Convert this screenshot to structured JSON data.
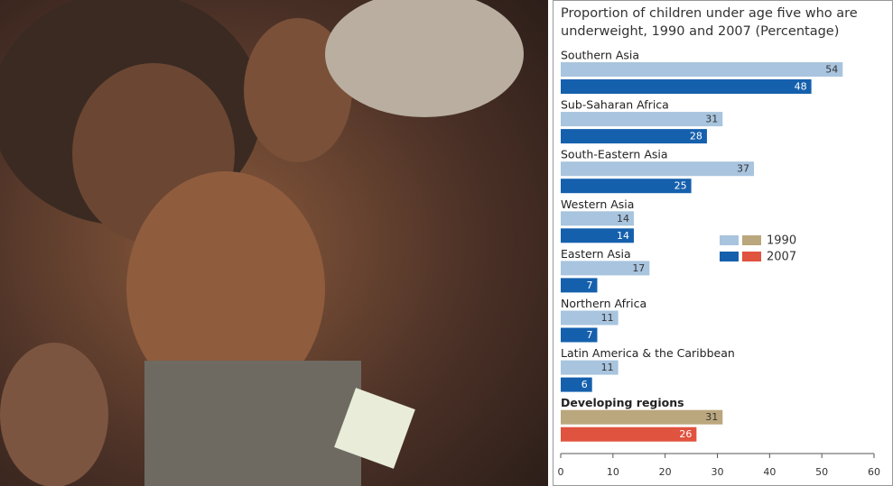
{
  "chart_data": {
    "type": "bar",
    "orientation": "horizontal",
    "title": "Proportion of children under age five who are underweight, 1990 and 2007 (Percentage)",
    "categories": [
      "Southern Asia",
      "Sub-Saharan Africa",
      "South-Eastern Asia",
      "Western Asia",
      "Eastern Asia",
      "Northern Africa",
      "Latin America & the Caribbean",
      "Developing regions"
    ],
    "highlight": [
      false,
      false,
      false,
      false,
      false,
      false,
      false,
      true
    ],
    "series": [
      {
        "name": "1990",
        "color": "#a8c4de",
        "highlight_color": "#bba77e",
        "label_color": "#333333",
        "values": [
          54,
          31,
          37,
          14,
          17,
          11,
          11,
          31
        ]
      },
      {
        "name": "2007",
        "color": "#1560ad",
        "highlight_color": "#e0533f",
        "label_color": "#ffffff",
        "values": [
          48,
          28,
          25,
          14,
          7,
          7,
          6,
          26
        ]
      }
    ],
    "xlim": [
      0,
      60
    ],
    "xticks": [
      0,
      10,
      20,
      30,
      40,
      50,
      60
    ],
    "grid": false
  }
}
